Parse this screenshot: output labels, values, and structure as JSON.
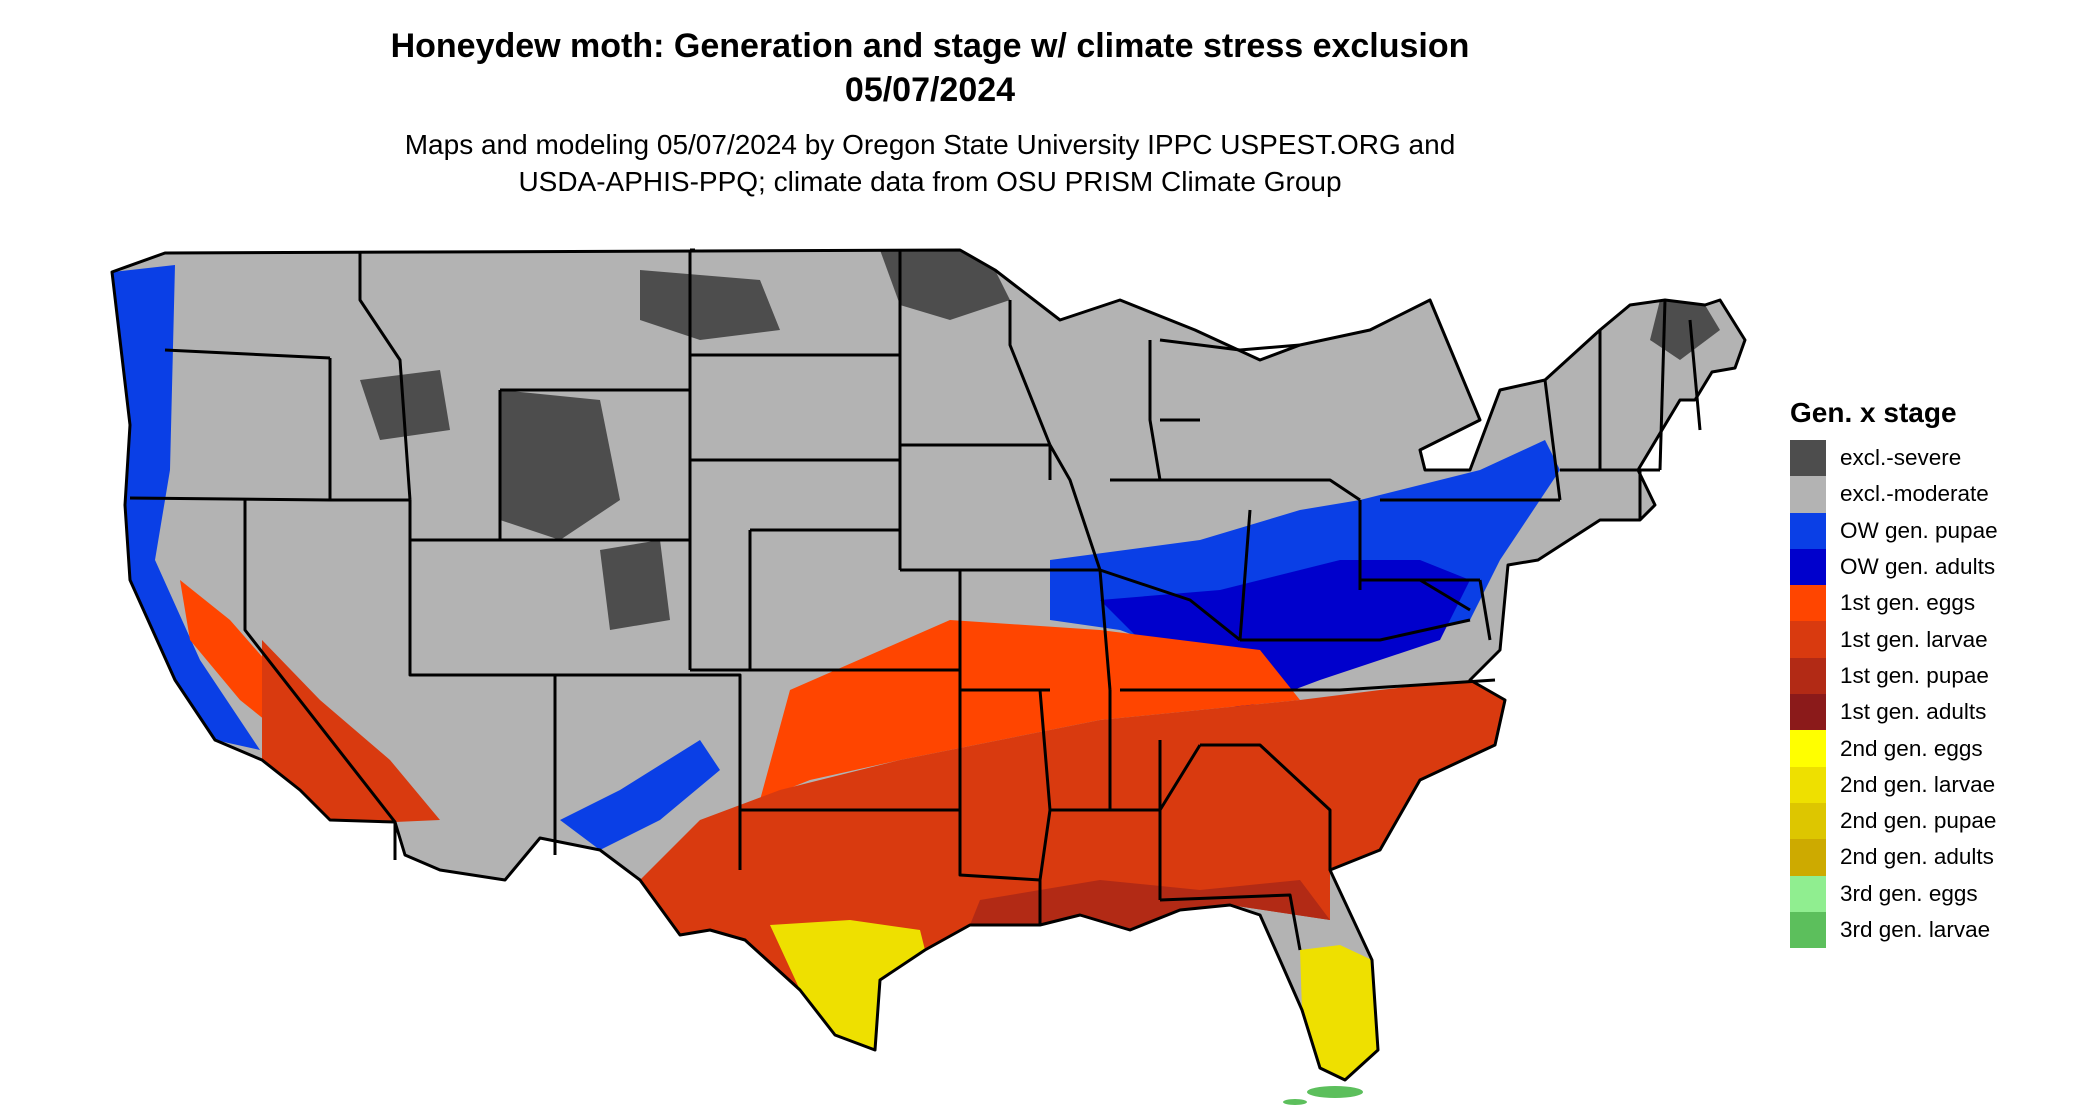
{
  "title_line1": "Honeydew moth: Generation and stage w/ climate stress exclusion",
  "title_line2": "05/07/2024",
  "subtitle_line1": "Maps and modeling 05/07/2024 by Oregon State University IPPC USPEST.ORG and",
  "subtitle_line2": "USDA-APHIS-PPQ; climate data from OSU PRISM Climate Group",
  "legend": {
    "title": "Gen. x stage",
    "items": [
      {
        "label": "excl.-severe",
        "color": "#4d4d4d"
      },
      {
        "label": "excl.-moderate",
        "color": "#b3b3b3"
      },
      {
        "label": "OW gen. pupae",
        "color": "#0a3fe6"
      },
      {
        "label": "OW gen. adults",
        "color": "#0000cc"
      },
      {
        "label": "1st gen. eggs",
        "color": "#ff4500"
      },
      {
        "label": "1st gen. larvae",
        "color": "#d93a0f"
      },
      {
        "label": "1st gen. pupae",
        "color": "#b22a15"
      },
      {
        "label": "1st gen. adults",
        "color": "#8b1a1a"
      },
      {
        "label": "2nd gen. eggs",
        "color": "#ffff00"
      },
      {
        "label": "2nd gen. larvae",
        "color": "#eee000"
      },
      {
        "label": "2nd gen. pupae",
        "color": "#ddc600"
      },
      {
        "label": "2nd gen. adults",
        "color": "#cdaa00"
      },
      {
        "label": "3rd gen. eggs",
        "color": "#90ee90"
      },
      {
        "label": "3rd gen. larvae",
        "color": "#5cbf5c"
      }
    ]
  }
}
